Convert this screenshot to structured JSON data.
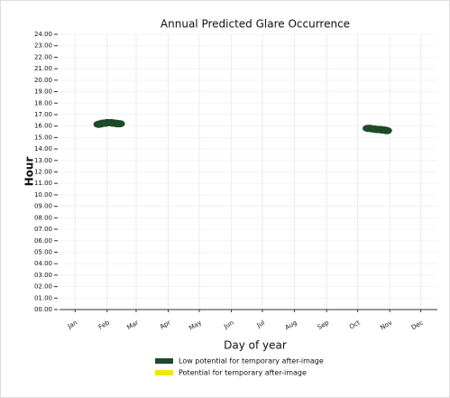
{
  "chart_data": {
    "type": "scatter",
    "title": "Annual Predicted Glare Occurrence",
    "xlabel": "Day of year",
    "ylabel": "Hour",
    "xlim": [
      0,
      365
    ],
    "ylim": [
      0,
      24
    ],
    "xticks": [
      {
        "value": 15,
        "label": "Jan"
      },
      {
        "value": 46,
        "label": "Feb"
      },
      {
        "value": 74,
        "label": "Mar"
      },
      {
        "value": 105,
        "label": "Apr"
      },
      {
        "value": 135,
        "label": "May"
      },
      {
        "value": 166,
        "label": "Jun"
      },
      {
        "value": 196,
        "label": "Jul"
      },
      {
        "value": 227,
        "label": "Aug"
      },
      {
        "value": 258,
        "label": "Sep"
      },
      {
        "value": 288,
        "label": "Oct"
      },
      {
        "value": 319,
        "label": "Nov"
      },
      {
        "value": 349,
        "label": "Dec"
      }
    ],
    "yticks": [
      {
        "value": 0,
        "label": "00.00"
      },
      {
        "value": 1,
        "label": "01.00"
      },
      {
        "value": 2,
        "label": "02.00"
      },
      {
        "value": 3,
        "label": "03.00"
      },
      {
        "value": 4,
        "label": "04.00"
      },
      {
        "value": 5,
        "label": "05.00"
      },
      {
        "value": 6,
        "label": "06.00"
      },
      {
        "value": 7,
        "label": "07.00"
      },
      {
        "value": 8,
        "label": "08.00"
      },
      {
        "value": 9,
        "label": "09.00"
      },
      {
        "value": 10,
        "label": "10.00"
      },
      {
        "value": 11,
        "label": "11.00"
      },
      {
        "value": 12,
        "label": "12.00"
      },
      {
        "value": 13,
        "label": "13.00"
      },
      {
        "value": 14,
        "label": "14.00"
      },
      {
        "value": 15,
        "label": "15.00"
      },
      {
        "value": 16,
        "label": "16.00"
      },
      {
        "value": 17,
        "label": "17.00"
      },
      {
        "value": 18,
        "label": "18.00"
      },
      {
        "value": 19,
        "label": "19.00"
      },
      {
        "value": 20,
        "label": "20.00"
      },
      {
        "value": 21,
        "label": "21.00"
      },
      {
        "value": 22,
        "label": "22.00"
      },
      {
        "value": 23,
        "label": "23.00"
      },
      {
        "value": 24,
        "label": "24.00"
      }
    ],
    "grid": true,
    "series": [
      {
        "name": "Low potential for temporary after-image",
        "color": "#1e4a2a",
        "x": [
          38,
          40,
          42,
          44,
          46,
          48,
          50,
          52,
          54,
          56,
          58,
          298,
          300,
          302,
          304,
          306,
          308,
          310,
          312,
          314,
          316
        ],
        "values": [
          16.15,
          16.2,
          16.25,
          16.25,
          16.3,
          16.3,
          16.3,
          16.25,
          16.25,
          16.2,
          16.2,
          15.8,
          15.8,
          15.75,
          15.75,
          15.7,
          15.7,
          15.7,
          15.65,
          15.65,
          15.6
        ]
      },
      {
        "name": "Potential for temporary after-image",
        "color": "#f2e600",
        "x": [],
        "values": []
      }
    ]
  }
}
